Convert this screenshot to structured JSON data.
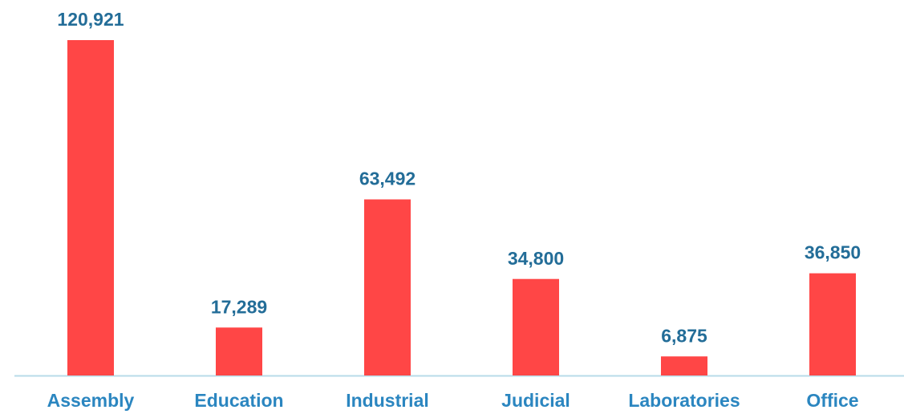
{
  "chart_data": {
    "type": "bar",
    "categories": [
      "Assembly",
      "Education",
      "Industrial",
      "Judicial",
      "Laboratories",
      "Office"
    ],
    "values": [
      120921,
      17289,
      63492,
      34800,
      6875,
      36850
    ],
    "value_labels": [
      "120,921",
      "17,289",
      "63,492",
      "34,800",
      "6,875",
      "36,850"
    ],
    "color": "#ff4646"
  }
}
